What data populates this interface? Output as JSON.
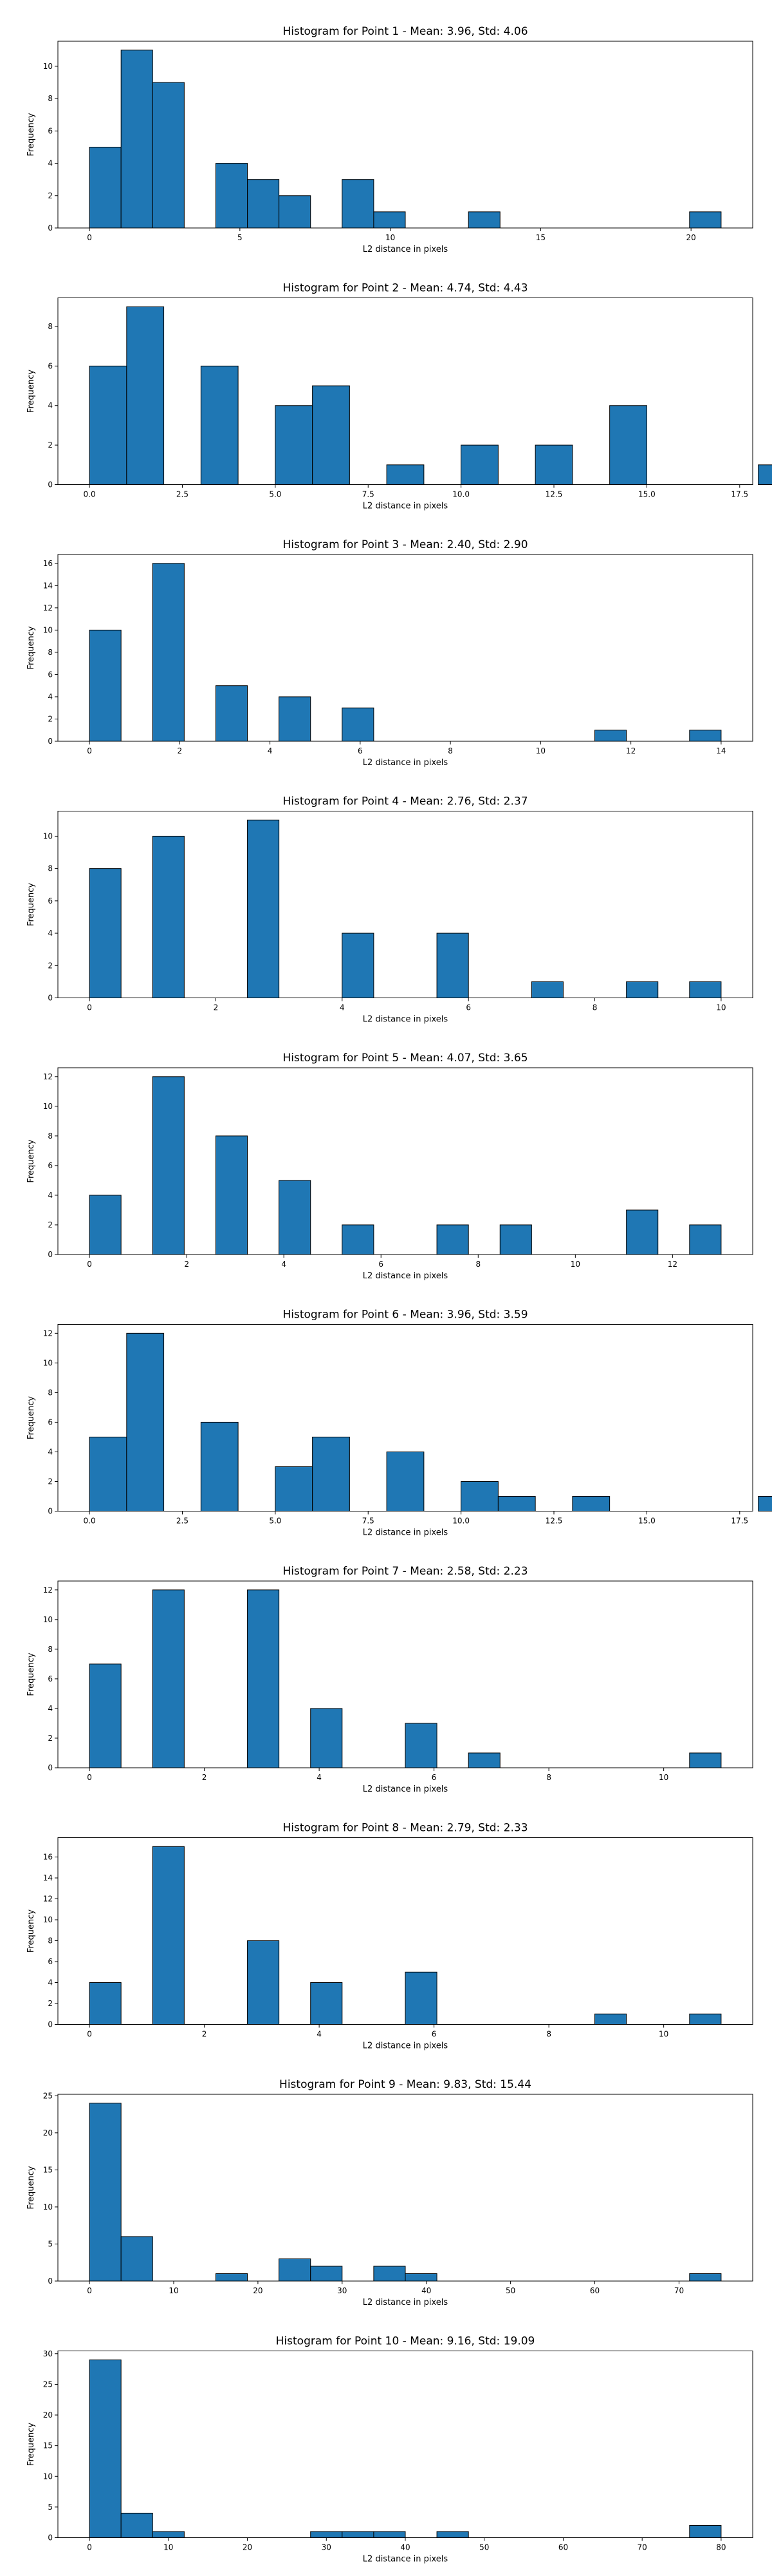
{
  "style": {
    "bar_color": "#1f77b4",
    "edge_color": "#000000"
  },
  "chart_data": [
    {
      "type": "bar",
      "title": "Histogram for Point 1 - Mean: 3.96, Std: 4.06",
      "xlabel": "L2 distance in pixels",
      "ylabel": "Frequency",
      "xlim": [
        -1.05,
        22.05
      ],
      "ylim": [
        0,
        11.55
      ],
      "xticks": [
        0,
        5,
        10,
        15,
        20
      ],
      "xticklabels": [
        "0",
        "5",
        "10",
        "15",
        "20"
      ],
      "yticks": [
        0,
        2,
        4,
        6,
        8,
        10
      ],
      "yticklabels": [
        "0",
        "2",
        "4",
        "6",
        "8",
        "10"
      ],
      "bins": [
        [
          0.0,
          1.05,
          5
        ],
        [
          1.05,
          2.1,
          11
        ],
        [
          2.1,
          3.15,
          9
        ],
        [
          4.2,
          5.25,
          4
        ],
        [
          5.25,
          6.3,
          3
        ],
        [
          6.3,
          7.35,
          2
        ],
        [
          8.4,
          9.45,
          3
        ],
        [
          9.45,
          10.5,
          1
        ],
        [
          12.6,
          13.65,
          1
        ],
        [
          19.95,
          21.0,
          1
        ]
      ]
    },
    {
      "type": "bar",
      "title": "Histogram for Point 2 - Mean: 4.74, Std: 4.43",
      "xlabel": "L2 distance in pixels",
      "ylabel": "Frequency",
      "xlim": [
        -0.85,
        17.85
      ],
      "ylim": [
        0,
        9.45
      ],
      "xticks": [
        0,
        2.5,
        5,
        7.5,
        10,
        12.5,
        15,
        17.5
      ],
      "xticklabels": [
        "0.0",
        "2.5",
        "5.0",
        "7.5",
        "10.0",
        "12.5",
        "15.0",
        "17.5"
      ],
      "yticks": [
        0,
        2,
        4,
        6,
        8
      ],
      "yticklabels": [
        "0",
        "2",
        "4",
        "6",
        "8"
      ],
      "bins": [
        [
          0.0,
          1.0,
          6
        ],
        [
          1.0,
          2.0,
          9
        ],
        [
          3.0,
          4.0,
          6
        ],
        [
          5.0,
          6.0,
          4
        ],
        [
          6.0,
          7.0,
          5
        ],
        [
          8.0,
          9.0,
          1
        ],
        [
          10.0,
          11.0,
          2
        ],
        [
          12.0,
          13.0,
          2
        ],
        [
          14.0,
          15.0,
          4
        ],
        [
          18.0,
          19.0,
          1
        ]
      ]
    },
    {
      "type": "bar",
      "title": "Histogram for Point 3 - Mean: 2.40, Std: 2.90",
      "xlabel": "L2 distance in pixels",
      "ylabel": "Frequency",
      "xlim": [
        -0.7,
        14.7
      ],
      "ylim": [
        0,
        16.8
      ],
      "xticks": [
        0,
        2,
        4,
        6,
        8,
        10,
        12,
        14
      ],
      "xticklabels": [
        "0",
        "2",
        "4",
        "6",
        "8",
        "10",
        "12",
        "14"
      ],
      "yticks": [
        0,
        2,
        4,
        6,
        8,
        10,
        12,
        14,
        16
      ],
      "yticklabels": [
        "0",
        "2",
        "4",
        "6",
        "8",
        "10",
        "12",
        "14",
        "16"
      ],
      "bins": [
        [
          0.0,
          0.7,
          10
        ],
        [
          1.4,
          2.1,
          16
        ],
        [
          2.8,
          3.5,
          5
        ],
        [
          4.2,
          4.9,
          4
        ],
        [
          5.6,
          6.3,
          3
        ],
        [
          11.2,
          11.9,
          1
        ],
        [
          13.3,
          14.0,
          1
        ]
      ]
    },
    {
      "type": "bar",
      "title": "Histogram for Point 4 - Mean: 2.76, Std: 2.37",
      "xlabel": "L2 distance in pixels",
      "ylabel": "Frequency",
      "xlim": [
        -0.5,
        10.5
      ],
      "ylim": [
        0,
        11.55
      ],
      "xticks": [
        0,
        2,
        4,
        6,
        8,
        10
      ],
      "xticklabels": [
        "0",
        "2",
        "4",
        "6",
        "8",
        "10"
      ],
      "yticks": [
        0,
        2,
        4,
        6,
        8,
        10
      ],
      "yticklabels": [
        "0",
        "2",
        "4",
        "6",
        "8",
        "10"
      ],
      "bins": [
        [
          0.0,
          0.5,
          8
        ],
        [
          1.0,
          1.5,
          10
        ],
        [
          2.5,
          3.0,
          11
        ],
        [
          4.0,
          4.5,
          4
        ],
        [
          5.5,
          6.0,
          4
        ],
        [
          7.0,
          7.5,
          1
        ],
        [
          8.5,
          9.0,
          1
        ],
        [
          9.5,
          10.0,
          1
        ]
      ]
    },
    {
      "type": "bar",
      "title": "Histogram for Point 5 - Mean: 4.07, Std: 3.65",
      "xlabel": "L2 distance in pixels",
      "ylabel": "Frequency",
      "xlim": [
        -0.65,
        13.65
      ],
      "ylim": [
        0,
        12.6
      ],
      "xticks": [
        0,
        2,
        4,
        6,
        8,
        10,
        12
      ],
      "xticklabels": [
        "0",
        "2",
        "4",
        "6",
        "8",
        "10",
        "12"
      ],
      "yticks": [
        0,
        2,
        4,
        6,
        8,
        10,
        12
      ],
      "yticklabels": [
        "0",
        "2",
        "4",
        "6",
        "8",
        "10",
        "12"
      ],
      "bins": [
        [
          0.0,
          0.65,
          4
        ],
        [
          1.3,
          1.95,
          12
        ],
        [
          2.6,
          3.25,
          8
        ],
        [
          3.9,
          4.55,
          5
        ],
        [
          5.2,
          5.85,
          2
        ],
        [
          7.15,
          7.8,
          2
        ],
        [
          8.45,
          9.1,
          2
        ],
        [
          11.05,
          11.7,
          3
        ],
        [
          12.35,
          13.0,
          2
        ]
      ]
    },
    {
      "type": "bar",
      "title": "Histogram for Point 6 - Mean: 3.96, Std: 3.59",
      "xlabel": "L2 distance in pixels",
      "ylabel": "Frequency",
      "xlim": [
        -0.85,
        17.85
      ],
      "ylim": [
        0,
        12.6
      ],
      "xticks": [
        0,
        2.5,
        5,
        7.5,
        10,
        12.5,
        15,
        17.5
      ],
      "xticklabels": [
        "0.0",
        "2.5",
        "5.0",
        "7.5",
        "10.0",
        "12.5",
        "15.0",
        "17.5"
      ],
      "yticks": [
        0,
        2,
        4,
        6,
        8,
        10,
        12
      ],
      "yticklabels": [
        "0",
        "2",
        "4",
        "6",
        "8",
        "10",
        "12"
      ],
      "bins": [
        [
          0.0,
          1.0,
          5
        ],
        [
          1.0,
          2.0,
          12
        ],
        [
          3.0,
          4.0,
          6
        ],
        [
          5.0,
          6.0,
          3
        ],
        [
          6.0,
          7.0,
          5
        ],
        [
          8.0,
          9.0,
          4
        ],
        [
          10.0,
          11.0,
          2
        ],
        [
          11.0,
          12.0,
          1
        ],
        [
          13.0,
          14.0,
          1
        ],
        [
          18.0,
          19.0,
          1
        ]
      ]
    },
    {
      "type": "bar",
      "title": "Histogram for Point 7 - Mean: 2.58, Std: 2.23",
      "xlabel": "L2 distance in pixels",
      "ylabel": "Frequency",
      "xlim": [
        -0.55,
        11.55
      ],
      "ylim": [
        0,
        12.6
      ],
      "xticks": [
        0,
        2,
        4,
        6,
        8,
        10
      ],
      "xticklabels": [
        "0",
        "2",
        "4",
        "6",
        "8",
        "10"
      ],
      "yticks": [
        0,
        2,
        4,
        6,
        8,
        10,
        12
      ],
      "yticklabels": [
        "0",
        "2",
        "4",
        "6",
        "8",
        "10",
        "12"
      ],
      "bins": [
        [
          0.0,
          0.55,
          7
        ],
        [
          1.1,
          1.65,
          12
        ],
        [
          2.75,
          3.3,
          12
        ],
        [
          3.85,
          4.4,
          4
        ],
        [
          5.5,
          6.05,
          3
        ],
        [
          6.6,
          7.15,
          1
        ],
        [
          10.45,
          11.0,
          1
        ]
      ]
    },
    {
      "type": "bar",
      "title": "Histogram for Point 8 - Mean: 2.79, Std: 2.33",
      "xlabel": "L2 distance in pixels",
      "ylabel": "Frequency",
      "xlim": [
        -0.55,
        11.55
      ],
      "ylim": [
        0,
        17.85
      ],
      "xticks": [
        0,
        2,
        4,
        6,
        8,
        10
      ],
      "xticklabels": [
        "0",
        "2",
        "4",
        "6",
        "8",
        "10"
      ],
      "yticks": [
        0,
        2,
        4,
        6,
        8,
        10,
        12,
        14,
        16
      ],
      "yticklabels": [
        "0",
        "2",
        "4",
        "6",
        "8",
        "10",
        "12",
        "14",
        "16"
      ],
      "bins": [
        [
          0.0,
          0.55,
          4
        ],
        [
          1.1,
          1.65,
          17
        ],
        [
          2.75,
          3.3,
          8
        ],
        [
          3.85,
          4.4,
          4
        ],
        [
          5.5,
          6.05,
          5
        ],
        [
          8.8,
          9.35,
          1
        ],
        [
          10.45,
          11.0,
          1
        ]
      ]
    },
    {
      "type": "bar",
      "title": "Histogram for Point 9 - Mean: 9.83, Std: 15.44",
      "xlabel": "L2 distance in pixels",
      "ylabel": "Frequency",
      "xlim": [
        -3.75,
        78.75
      ],
      "ylim": [
        0,
        25.2
      ],
      "xticks": [
        0,
        10,
        20,
        30,
        40,
        50,
        60,
        70
      ],
      "xticklabels": [
        "0",
        "10",
        "20",
        "30",
        "40",
        "50",
        "60",
        "70"
      ],
      "yticks": [
        0,
        5,
        10,
        15,
        20,
        25
      ],
      "yticklabels": [
        "0",
        "5",
        "10",
        "15",
        "20",
        "25"
      ],
      "bins": [
        [
          0.0,
          3.75,
          24
        ],
        [
          3.75,
          7.5,
          6
        ],
        [
          15.0,
          18.75,
          1
        ],
        [
          22.5,
          26.25,
          3
        ],
        [
          26.25,
          30.0,
          2
        ],
        [
          33.75,
          37.5,
          2
        ],
        [
          37.5,
          41.25,
          1
        ],
        [
          71.25,
          75.0,
          1
        ]
      ]
    },
    {
      "type": "bar",
      "title": "Histogram for Point 10 - Mean: 9.16, Std: 19.09",
      "xlabel": "L2 distance in pixels",
      "ylabel": "Frequency",
      "xlim": [
        -4.0,
        84.0
      ],
      "ylim": [
        0,
        30.45
      ],
      "xticks": [
        0,
        10,
        20,
        30,
        40,
        50,
        60,
        70,
        80
      ],
      "xticklabels": [
        "0",
        "10",
        "20",
        "30",
        "40",
        "50",
        "60",
        "70",
        "80"
      ],
      "yticks": [
        0,
        5,
        10,
        15,
        20,
        25,
        30
      ],
      "yticklabels": [
        "0",
        "5",
        "10",
        "15",
        "20",
        "25",
        "30"
      ],
      "bins": [
        [
          0.0,
          4.0,
          29
        ],
        [
          4.0,
          8.0,
          4
        ],
        [
          8.0,
          12.0,
          1
        ],
        [
          28.0,
          32.0,
          1
        ],
        [
          32.0,
          36.0,
          1
        ],
        [
          36.0,
          40.0,
          1
        ],
        [
          44.0,
          48.0,
          1
        ],
        [
          76.0,
          80.0,
          2
        ]
      ]
    }
  ]
}
